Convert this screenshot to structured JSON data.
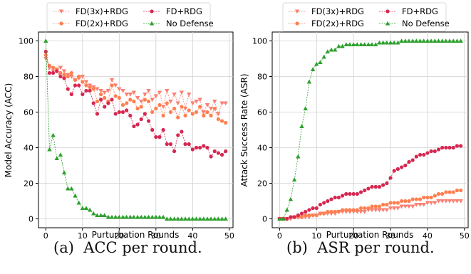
{
  "captions": [
    "(a)  ACC per round.",
    "(b)  ASR per round."
  ],
  "chart_data": [
    {
      "type": "line",
      "xlabel": "Purturbation Rounds",
      "ylabel": "Model Accuracy (ACC)",
      "xlim": [
        -2,
        51
      ],
      "ylim": [
        -5,
        105
      ],
      "xticks": [
        0,
        10,
        20,
        30,
        40,
        50
      ],
      "yticks": [
        0,
        20,
        40,
        60,
        80,
        100
      ],
      "grid": true,
      "legend_position": "top",
      "series": [
        {
          "name": "FD(3x)+RDG",
          "color": "#fa8072",
          "marker": "triangle-down",
          "x": [
            0,
            1,
            2,
            3,
            4,
            5,
            6,
            7,
            8,
            9,
            10,
            11,
            12,
            13,
            14,
            15,
            16,
            17,
            18,
            19,
            20,
            21,
            22,
            23,
            24,
            25,
            26,
            27,
            28,
            29,
            30,
            31,
            32,
            33,
            34,
            35,
            36,
            37,
            38,
            39,
            40,
            41,
            42,
            43,
            44,
            45,
            46,
            47,
            48,
            49
          ],
          "y": [
            90,
            85,
            83,
            84,
            85,
            83,
            81,
            80,
            78,
            79,
            80,
            77,
            75,
            74,
            73,
            72,
            71,
            72,
            78,
            75,
            73,
            72,
            70,
            70,
            71,
            68,
            66,
            70,
            72,
            67,
            69,
            71,
            63,
            72,
            66,
            70,
            65,
            71,
            62,
            70,
            65,
            66,
            67,
            60,
            64,
            62,
            66,
            59,
            65,
            65
          ]
        },
        {
          "name": "FD(2x)+RDG",
          "color": "#ff7f50",
          "marker": "circle",
          "x": [
            0,
            1,
            2,
            3,
            4,
            5,
            6,
            7,
            8,
            9,
            10,
            11,
            12,
            13,
            14,
            15,
            16,
            17,
            18,
            19,
            20,
            21,
            22,
            23,
            24,
            25,
            26,
            27,
            28,
            29,
            30,
            31,
            32,
            33,
            34,
            35,
            36,
            37,
            38,
            39,
            40,
            41,
            42,
            43,
            44,
            45,
            46,
            47,
            48,
            49
          ],
          "y": [
            92,
            86,
            85,
            84,
            82,
            81,
            80,
            82,
            78,
            80,
            77,
            75,
            74,
            73,
            66,
            70,
            68,
            66,
            75,
            69,
            68,
            64,
            65,
            67,
            66,
            62,
            63,
            67,
            66,
            60,
            62,
            64,
            58,
            65,
            60,
            62,
            57,
            63,
            58,
            61,
            59,
            60,
            63,
            58,
            60,
            58,
            62,
            56,
            55,
            54
          ]
        },
        {
          "name": "FD+RDG",
          "color": "#d62750",
          "marker": "circle",
          "x": [
            0,
            1,
            2,
            3,
            4,
            5,
            6,
            7,
            8,
            9,
            10,
            11,
            12,
            13,
            14,
            15,
            16,
            17,
            18,
            19,
            20,
            21,
            22,
            23,
            24,
            25,
            26,
            27,
            28,
            29,
            30,
            31,
            32,
            33,
            34,
            35,
            36,
            37,
            38,
            39,
            40,
            41,
            42,
            43,
            44,
            45,
            46,
            47,
            48,
            49
          ],
          "y": [
            94,
            82,
            82,
            83,
            80,
            79,
            73,
            70,
            75,
            75,
            70,
            72,
            72,
            65,
            59,
            67,
            63,
            65,
            67,
            59,
            60,
            60,
            61,
            58,
            52,
            53,
            56,
            59,
            55,
            50,
            46,
            46,
            50,
            42,
            42,
            38,
            47,
            49,
            42,
            42,
            39,
            40,
            40,
            41,
            40,
            35,
            38,
            37,
            36,
            38
          ]
        },
        {
          "name": "No Defense",
          "color": "#2ca02c",
          "marker": "triangle-up",
          "x": [
            0,
            1,
            2,
            3,
            4,
            5,
            6,
            7,
            8,
            9,
            10,
            11,
            12,
            13,
            14,
            15,
            16,
            17,
            18,
            19,
            20,
            21,
            22,
            23,
            24,
            25,
            26,
            27,
            28,
            29,
            30,
            31,
            32,
            33,
            34,
            35,
            36,
            37,
            38,
            39,
            40,
            41,
            42,
            43,
            44,
            45,
            46,
            47,
            48,
            49
          ],
          "y": [
            100,
            39,
            47,
            34,
            36,
            26,
            17,
            17,
            13,
            9,
            6,
            6,
            5,
            3,
            2,
            2,
            2,
            1,
            1,
            1,
            1,
            1,
            1,
            1,
            1,
            1,
            1,
            1,
            1,
            1,
            1,
            1,
            1,
            0,
            0,
            0,
            0,
            0,
            0,
            0,
            0,
            0,
            0,
            0,
            0,
            0,
            0,
            0,
            0,
            0
          ]
        }
      ]
    },
    {
      "type": "line",
      "xlabel": "Purturbation Rounds",
      "ylabel": "Attack Success Rate (ASR)",
      "xlim": [
        -2,
        51
      ],
      "ylim": [
        -5,
        105
      ],
      "xticks": [
        0,
        10,
        20,
        30,
        40,
        50
      ],
      "yticks": [
        0,
        20,
        40,
        60,
        80,
        100
      ],
      "grid": true,
      "legend_position": "top",
      "series": [
        {
          "name": "FD(3x)+RDG",
          "color": "#fa8072",
          "marker": "triangle-down",
          "x": [
            0,
            1,
            2,
            3,
            4,
            5,
            6,
            7,
            8,
            9,
            10,
            11,
            12,
            13,
            14,
            15,
            16,
            17,
            18,
            19,
            20,
            21,
            22,
            23,
            24,
            25,
            26,
            27,
            28,
            29,
            30,
            31,
            32,
            33,
            34,
            35,
            36,
            37,
            38,
            39,
            40,
            41,
            42,
            43,
            44,
            45,
            46,
            47,
            48,
            49
          ],
          "y": [
            0,
            0,
            0,
            0,
            1,
            1,
            1,
            1,
            1,
            2,
            2,
            3,
            3,
            3,
            3,
            3,
            4,
            4,
            4,
            4,
            4,
            4,
            4,
            4,
            5,
            5,
            5,
            5,
            5,
            5,
            6,
            6,
            6,
            7,
            7,
            7,
            7,
            8,
            8,
            8,
            9,
            9,
            9,
            10,
            10,
            10,
            10,
            10,
            10,
            10
          ]
        },
        {
          "name": "FD(2x)+RDG",
          "color": "#ff7f50",
          "marker": "circle",
          "x": [
            0,
            1,
            2,
            3,
            4,
            5,
            6,
            7,
            8,
            9,
            10,
            11,
            12,
            13,
            14,
            15,
            16,
            17,
            18,
            19,
            20,
            21,
            22,
            23,
            24,
            25,
            26,
            27,
            28,
            29,
            30,
            31,
            32,
            33,
            34,
            35,
            36,
            37,
            38,
            39,
            40,
            41,
            42,
            43,
            44,
            45,
            46,
            47,
            48,
            49
          ],
          "y": [
            0,
            0,
            0,
            1,
            1,
            1,
            1,
            2,
            2,
            2,
            2,
            3,
            3,
            4,
            4,
            4,
            4,
            5,
            5,
            5,
            5,
            5,
            6,
            6,
            6,
            7,
            7,
            7,
            8,
            8,
            9,
            9,
            9,
            10,
            10,
            10,
            11,
            11,
            11,
            12,
            12,
            12,
            13,
            14,
            14,
            15,
            15,
            15,
            16,
            16
          ]
        },
        {
          "name": "FD+RDG",
          "color": "#d62750",
          "marker": "circle",
          "x": [
            0,
            1,
            2,
            3,
            4,
            5,
            6,
            7,
            8,
            9,
            10,
            11,
            12,
            13,
            14,
            15,
            16,
            17,
            18,
            19,
            20,
            21,
            22,
            23,
            24,
            25,
            26,
            27,
            28,
            29,
            30,
            31,
            32,
            33,
            34,
            35,
            36,
            37,
            38,
            39,
            40,
            41,
            42,
            43,
            44,
            45,
            46,
            47,
            48,
            49
          ],
          "y": [
            0,
            0,
            0,
            1,
            1,
            2,
            3,
            4,
            5,
            6,
            6,
            8,
            9,
            10,
            11,
            12,
            12,
            13,
            14,
            14,
            14,
            14,
            15,
            16,
            17,
            18,
            18,
            18,
            19,
            20,
            23,
            27,
            28,
            29,
            30,
            32,
            33,
            35,
            36,
            36,
            37,
            38,
            38,
            39,
            40,
            40,
            40,
            40,
            41,
            41
          ]
        },
        {
          "name": "No Defense",
          "color": "#2ca02c",
          "marker": "triangle-up",
          "x": [
            0,
            1,
            2,
            3,
            4,
            5,
            6,
            7,
            8,
            9,
            10,
            11,
            12,
            13,
            14,
            15,
            16,
            17,
            18,
            19,
            20,
            21,
            22,
            23,
            24,
            25,
            26,
            27,
            28,
            29,
            30,
            31,
            32,
            33,
            34,
            35,
            36,
            37,
            38,
            39,
            40,
            41,
            42,
            43,
            44,
            45,
            46,
            47,
            48,
            49
          ],
          "y": [
            0,
            0,
            5,
            11,
            22,
            35,
            52,
            62,
            77,
            84,
            87,
            88,
            91,
            94,
            95,
            95,
            97,
            97,
            98,
            98,
            98,
            98,
            98,
            98,
            98,
            98,
            98,
            99,
            99,
            99,
            99,
            99,
            99,
            100,
            100,
            100,
            100,
            100,
            100,
            100,
            100,
            100,
            100,
            100,
            100,
            100,
            100,
            100,
            100,
            100
          ]
        }
      ]
    }
  ]
}
